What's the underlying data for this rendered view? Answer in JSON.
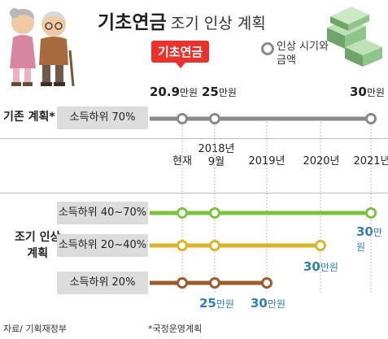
{
  "header": {
    "title_bold": "기초연금",
    "title_rest": "조기 인상 계획",
    "callout": "기초연금",
    "legend_line1": "인상 시기와",
    "legend_line2": "금액"
  },
  "footer": {
    "source": "자료/ 기획재정부",
    "note": "*국정운영계획"
  },
  "chart_data": {
    "type": "line",
    "x_ticks": [
      {
        "lines": [
          "현재"
        ]
      },
      {
        "lines": [
          "2018년",
          "9월"
        ]
      },
      {
        "lines": [
          "2019년"
        ]
      },
      {
        "lines": [
          "2020년"
        ]
      },
      {
        "lines": [
          "2021년"
        ]
      }
    ],
    "amounts_top": [
      {
        "num": "20.9",
        "unit": "만원"
      },
      {
        "num": "25",
        "unit": "만원"
      },
      {
        "num": "30",
        "unit": "만원"
      }
    ],
    "existing_plan": {
      "section": "기존 계획*",
      "label": "소득하위 70%",
      "color": "#8a8a8a",
      "milestones": [
        {
          "x": "현재",
          "amount": 20.9
        },
        {
          "x": "2018년 9월",
          "amount": 25
        },
        {
          "x": "2021년",
          "amount": 30
        }
      ]
    },
    "early_plan": {
      "section_line1": "조기 인상",
      "section_line2": "계획",
      "series": [
        {
          "label": "소득하위 40~70%",
          "color": "#7cc242",
          "milestones": [
            {
              "x": "현재",
              "amount": 20.9
            },
            {
              "x": "2018년 9월",
              "amount": 25
            },
            {
              "x": "2021년",
              "amount": 30
            }
          ],
          "end_label": {
            "num": "30",
            "unit": "만원"
          }
        },
        {
          "label": "소득하위 20~40%",
          "color": "#d9b42a",
          "milestones": [
            {
              "x": "현재",
              "amount": 20.9
            },
            {
              "x": "2018년 9월",
              "amount": 25
            },
            {
              "x": "2020년",
              "amount": 30
            }
          ],
          "end_label": {
            "num": "30",
            "unit": "만원"
          }
        },
        {
          "label": "소득하위 20%",
          "color": "#9b5a2e",
          "milestones": [
            {
              "x": "현재",
              "amount": 20.9
            },
            {
              "x": "2018년 9월",
              "amount": 25
            },
            {
              "x": "2019년",
              "amount": 30
            }
          ],
          "end_labels": [
            {
              "num": "25",
              "unit": "만원"
            },
            {
              "num": "30",
              "unit": "만원"
            }
          ]
        }
      ]
    }
  }
}
